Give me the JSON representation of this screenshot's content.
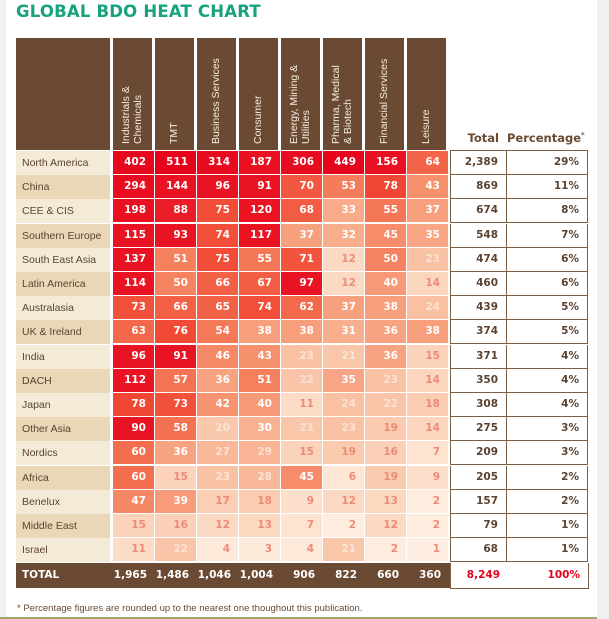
{
  "title": "GLOBAL BDO HEAT CHART",
  "chart_data": {
    "type": "heatmap",
    "title": "GLOBAL BDO HEAT CHART",
    "columns": [
      "Industrials & Chemicals",
      "TMT",
      "Business Services",
      "Consumer",
      "Energy, Mining & Utilities",
      "Pharma, Medical & Biotech",
      "Financial Services",
      "Leisure"
    ],
    "columns_display": [
      [
        "Industrials &",
        "Chemicals"
      ],
      [
        "TMT"
      ],
      [
        "Business Services"
      ],
      [
        "Consumer"
      ],
      [
        "Energy, Mining &",
        "Utilities"
      ],
      [
        "Pharma, Medical",
        "& Biotech"
      ],
      [
        "Financial Services"
      ],
      [
        "Leisure"
      ]
    ],
    "total_header": "Total",
    "percentage_header": "Percentage",
    "percentage_marker": "*",
    "rows": [
      {
        "region": "North America",
        "values": [
          402,
          511,
          314,
          187,
          306,
          449,
          156,
          64
        ],
        "total": "2,389",
        "percentage": "29%"
      },
      {
        "region": "China",
        "values": [
          294,
          144,
          96,
          91,
          70,
          53,
          78,
          43
        ],
        "total": "869",
        "percentage": "11%"
      },
      {
        "region": "CEE & CIS",
        "values": [
          198,
          88,
          75,
          120,
          68,
          33,
          55,
          37
        ],
        "total": "674",
        "percentage": "8%"
      },
      {
        "region": "Southern Europe",
        "values": [
          115,
          93,
          74,
          117,
          37,
          32,
          45,
          35
        ],
        "total": "548",
        "percentage": "7%"
      },
      {
        "region": "South East Asia",
        "values": [
          137,
          51,
          75,
          55,
          71,
          12,
          50,
          23
        ],
        "total": "474",
        "percentage": "6%"
      },
      {
        "region": "Latin America",
        "values": [
          114,
          50,
          66,
          67,
          97,
          12,
          40,
          14
        ],
        "total": "460",
        "percentage": "6%"
      },
      {
        "region": "Australasia",
        "values": [
          73,
          66,
          65,
          74,
          62,
          37,
          38,
          24
        ],
        "total": "439",
        "percentage": "5%"
      },
      {
        "region": "UK & Ireland",
        "values": [
          63,
          76,
          54,
          38,
          38,
          31,
          36,
          38
        ],
        "total": "374",
        "percentage": "5%"
      },
      {
        "region": "India",
        "values": [
          96,
          91,
          46,
          43,
          23,
          21,
          36,
          15
        ],
        "total": "371",
        "percentage": "4%"
      },
      {
        "region": "DACH",
        "values": [
          112,
          57,
          36,
          51,
          22,
          35,
          23,
          14
        ],
        "total": "350",
        "percentage": "4%"
      },
      {
        "region": "Japan",
        "values": [
          78,
          73,
          42,
          40,
          11,
          24,
          22,
          18
        ],
        "total": "308",
        "percentage": "4%"
      },
      {
        "region": "Other Asia",
        "values": [
          90,
          58,
          20,
          30,
          21,
          23,
          19,
          14
        ],
        "total": "275",
        "percentage": "3%"
      },
      {
        "region": "Nordics",
        "values": [
          60,
          36,
          27,
          29,
          15,
          19,
          16,
          7
        ],
        "total": "209",
        "percentage": "3%"
      },
      {
        "region": "Africa",
        "values": [
          60,
          15,
          23,
          28,
          45,
          6,
          19,
          9
        ],
        "total": "205",
        "percentage": "2%"
      },
      {
        "region": "Benelux",
        "values": [
          47,
          39,
          17,
          18,
          9,
          12,
          13,
          2
        ],
        "total": "157",
        "percentage": "2%"
      },
      {
        "region": "Middle East",
        "values": [
          15,
          16,
          12,
          13,
          7,
          2,
          12,
          2
        ],
        "total": "79",
        "percentage": "1%"
      },
      {
        "region": "Israel",
        "values": [
          11,
          22,
          4,
          3,
          4,
          21,
          2,
          1
        ],
        "total": "68",
        "percentage": "1%"
      }
    ],
    "total_row": {
      "label": "TOTAL",
      "values": [
        "1,965",
        "1,486",
        "1,046",
        "1,004",
        "906",
        "822",
        "660",
        "360"
      ],
      "total": "8,249",
      "percentage": "100%"
    }
  },
  "footnote": "* Percentage figures are rounded up to the nearest one thoughout this publication.",
  "colors": {
    "title": "#16a37e",
    "header": "#6b4a33",
    "label_odd": "#f4ead8",
    "label_even": "#ead7b8",
    "grand_total": "#e3001b"
  }
}
